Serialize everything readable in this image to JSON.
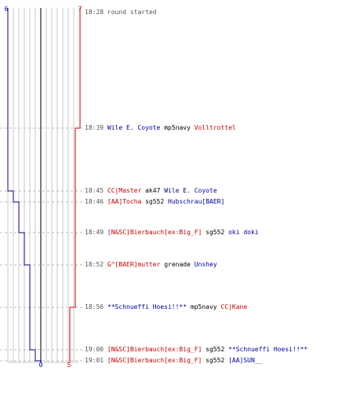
{
  "axes": {
    "top_left_score": "6",
    "top_right_score": "7",
    "bottom_left_score": "0",
    "bottom_right_score": "5"
  },
  "colors": {
    "red_team": "#cc0000",
    "blue_team": "#000099",
    "grid": "#c8c8c8",
    "center_line": "#7a7a7a",
    "dashed": "#bdbdbd"
  },
  "events": [
    {
      "time": "18:28",
      "note": "round started"
    },
    {
      "time": "18:39",
      "killer": "Wile E. Coyote",
      "killer_team": "blue",
      "weapon": "mp5navy",
      "victim": "Volltrottel",
      "victim_team": "red"
    },
    {
      "time": "18:45",
      "killer": "CC|Master",
      "killer_team": "red",
      "weapon": "ak47",
      "victim": "Wile E. Coyote",
      "victim_team": "blue"
    },
    {
      "time": "18:46",
      "killer": "[AA]Tocha",
      "killer_team": "red",
      "weapon": "sg552",
      "victim": "Hubschrau[BAER]",
      "victim_team": "blue"
    },
    {
      "time": "18:49",
      "killer": "[N&SC]Bierbauch[ex:Big_F]",
      "killer_team": "red",
      "weapon": "sg552",
      "victim": "oki doki",
      "victim_team": "blue"
    },
    {
      "time": "18:52",
      "killer": "G^[BAER]mutter",
      "killer_team": "red",
      "weapon": "grenade",
      "victim": "Unshey",
      "victim_team": "blue"
    },
    {
      "time": "18:56",
      "killer": "**Schnueffi Hoesi!!**",
      "killer_team": "blue",
      "weapon": "mp5navy",
      "victim": "CC|Kane",
      "victim_team": "red"
    },
    {
      "time": "19:00",
      "killer": "[N&SC]Bierbauch[ex:Big_F]",
      "killer_team": "red",
      "weapon": "sg552",
      "victim": "**Schnueffi Hoesi!!**",
      "victim_team": "blue"
    },
    {
      "time": "19:01",
      "killer": "[N&SC]Bierbauch[ex:Big_F]",
      "killer_team": "red",
      "weapon": "sg552",
      "victim": "[AA]SUN__",
      "victim_team": "blue"
    }
  ]
}
